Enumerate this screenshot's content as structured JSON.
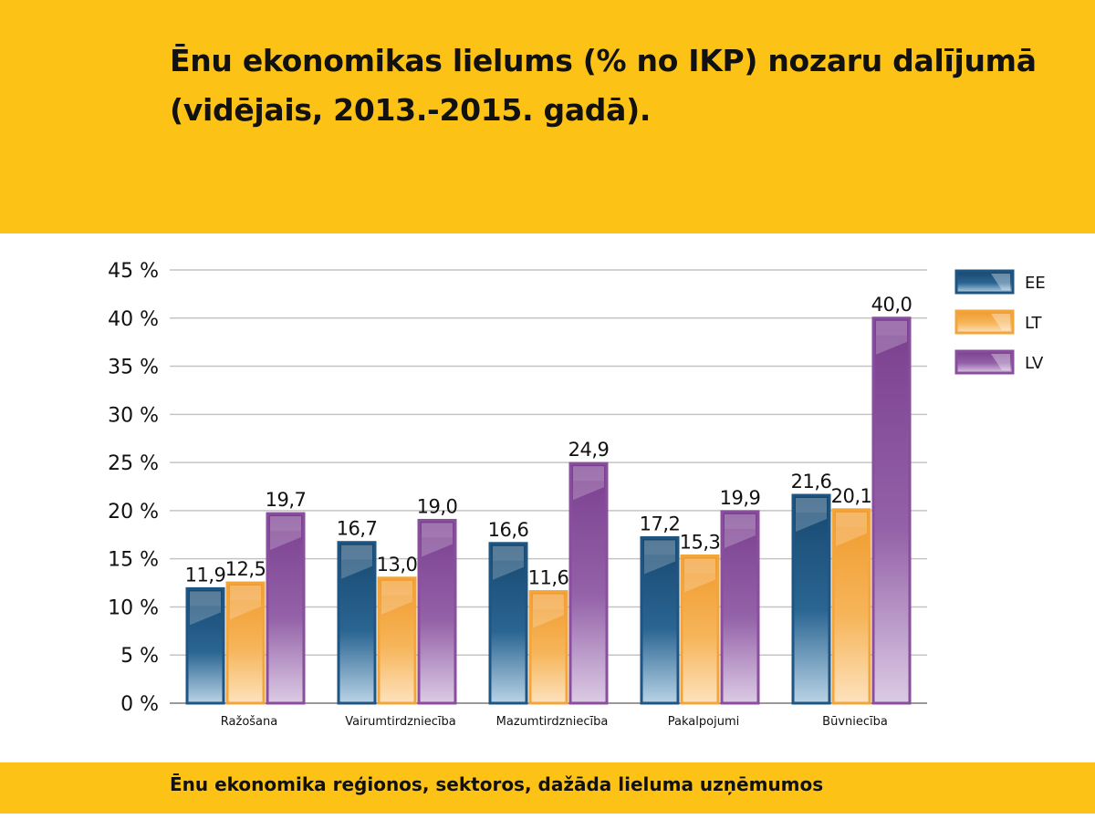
{
  "title": "Ēnu ekonomikas lielums (% no IKP) nozaru dalījumā (vidējais, 2013.-2015. gadā).",
  "footer": "Ēnu ekonomika reģionos, sektoros, dažāda lieluma uzņēmumos",
  "chart_data": {
    "type": "bar",
    "categories": [
      "Ražošana",
      "Vairumtirdzniecība",
      "Mazumtirdzniecība",
      "Pakalpojumi",
      "Būvniecība"
    ],
    "series": [
      {
        "name": "EE",
        "values": [
          11.9,
          16.7,
          16.6,
          17.2,
          21.6
        ],
        "labels": [
          "11,9",
          "16,7",
          "16,6",
          "17,2",
          "21,6"
        ],
        "color": "#1e5583"
      },
      {
        "name": "LT",
        "values": [
          12.5,
          13.0,
          11.6,
          15.3,
          20.1
        ],
        "labels": [
          "12,5",
          "13,0",
          "11,6",
          "15,3",
          "20,1"
        ],
        "color": "#f3a53b"
      },
      {
        "name": "LV",
        "values": [
          19.7,
          19.0,
          24.9,
          19.9,
          40.0
        ],
        "labels": [
          "19,7",
          "19,0",
          "24,9",
          "19,9",
          "40,0"
        ],
        "color": "#8a4e9e"
      }
    ],
    "ylim": [
      0,
      45
    ],
    "yticks": [
      0,
      5,
      10,
      15,
      20,
      25,
      30,
      35,
      40,
      45
    ],
    "ytick_labels": [
      "0 %",
      "5 %",
      "10 %",
      "15 %",
      "20 %",
      "25 %",
      "30 %",
      "35 %",
      "40 %",
      "45 %"
    ],
    "grid": true,
    "legend_position": "top-right"
  }
}
